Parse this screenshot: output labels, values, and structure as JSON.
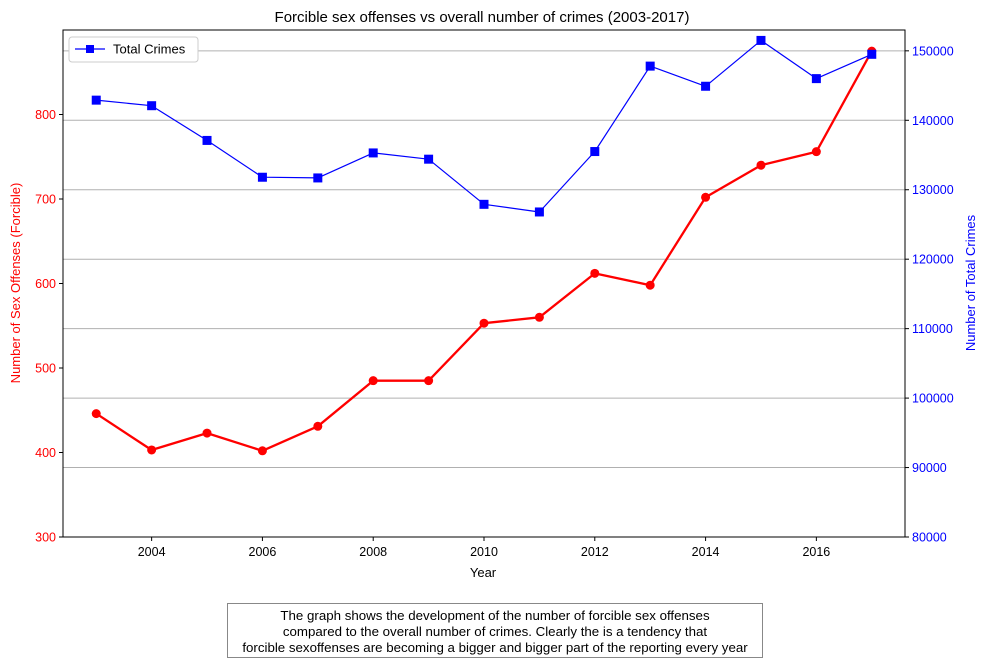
{
  "chart_data": {
    "type": "line",
    "title": "Forcible sex offenses vs overall number of crimes (2003-2017)",
    "xlabel": "Year",
    "ylabel_left": "Number of Sex Offenses (Forcible)",
    "ylabel_right": "Number of Total Crimes",
    "xlim": [
      2002.4,
      2017.6
    ],
    "x_ticks": [
      2004,
      2006,
      2008,
      2010,
      2012,
      2014,
      2016
    ],
    "ylim_left": [
      300,
      900
    ],
    "y_ticks_left": [
      300,
      400,
      500,
      600,
      700,
      800
    ],
    "ylim_right": [
      80000,
      153000
    ],
    "y_ticks_right": [
      80000,
      90000,
      100000,
      110000,
      120000,
      130000,
      140000,
      150000
    ],
    "grid": "horizontal, right axis",
    "legend": "top-left",
    "series": [
      {
        "axis": "left",
        "color": "#ff0000",
        "marker": "circle",
        "x": [
          2003,
          2004,
          2005,
          2006,
          2007,
          2008,
          2009,
          2010,
          2011,
          2012,
          2013,
          2014,
          2015,
          2016,
          2017
        ],
        "values": [
          446,
          403,
          423,
          402,
          431,
          485,
          485,
          553,
          560,
          612,
          598,
          702,
          740,
          756,
          875
        ]
      },
      {
        "name": "Total Crimes",
        "axis": "right",
        "color": "#0000ff",
        "marker": "square",
        "x": [
          2003,
          2004,
          2005,
          2006,
          2007,
          2008,
          2009,
          2010,
          2011,
          2012,
          2013,
          2014,
          2015,
          2016,
          2017
        ],
        "values": [
          142900,
          142100,
          137100,
          131800,
          131700,
          135300,
          134400,
          127900,
          126800,
          135500,
          147800,
          144900,
          151500,
          146000,
          149500
        ]
      }
    ]
  },
  "caption": {
    "lines": [
      "The graph shows the development of the number of forcible sex offenses",
      "compared to the overall number of crimes. Clearly the is a tendency that",
      "forcible sexoffenses are becoming a bigger and bigger part of the reporting every year"
    ]
  }
}
